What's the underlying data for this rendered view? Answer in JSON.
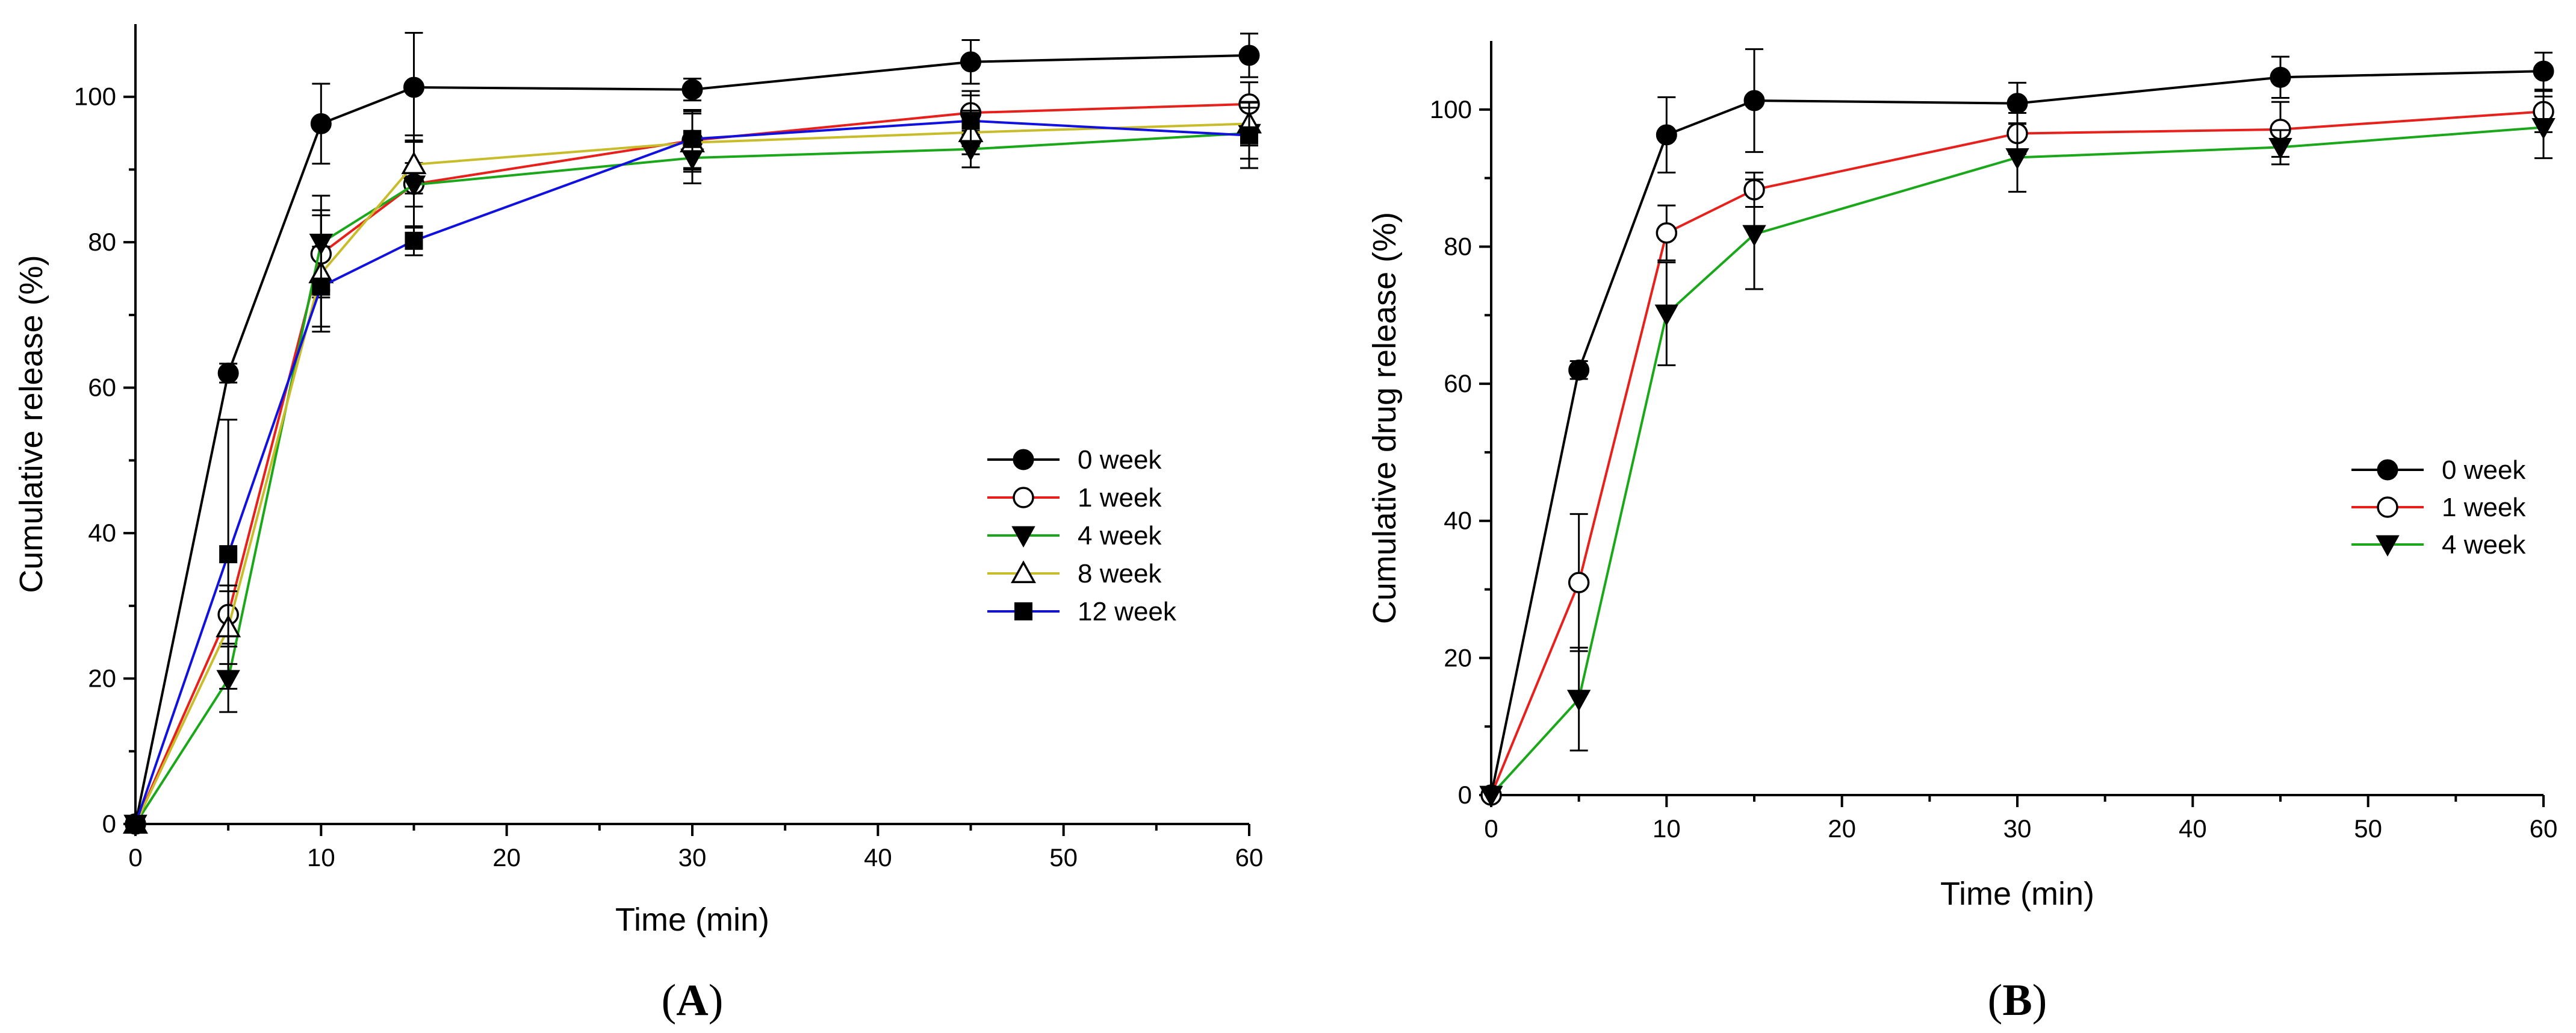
{
  "chart_data": [
    {
      "type": "line",
      "panel": "A",
      "panel_label": {
        "open": "(",
        "letter": "A",
        "close": ")"
      },
      "title": "",
      "xlabel": "Time (min)",
      "ylabel": "Cumulative release (%)",
      "xlim": [
        0,
        60
      ],
      "ylim": [
        0,
        110
      ],
      "xticks": [
        0,
        10,
        20,
        30,
        40,
        50,
        60
      ],
      "yticks": [
        0,
        20,
        40,
        60,
        80,
        100
      ],
      "x": [
        0,
        5,
        10,
        15,
        30,
        45,
        60
      ],
      "legend_position": "center-right",
      "series": [
        {
          "name": "0 week",
          "color": "#000000",
          "marker": "filled-circle",
          "values": [
            0,
            62,
            96.3,
            101.3,
            101,
            104.8,
            105.7
          ],
          "errors": [
            0,
            1.3,
            5.5,
            7.5,
            1.5,
            3,
            3
          ]
        },
        {
          "name": "1 week",
          "color": "#e8201c",
          "marker": "open-circle",
          "values": [
            0,
            28.8,
            78.4,
            88,
            94,
            97.8,
            99
          ],
          "errors": [
            0,
            4,
            6,
            6,
            4,
            3,
            3
          ]
        },
        {
          "name": "4 week",
          "color": "#1aa81a",
          "marker": "down-triangle",
          "values": [
            0,
            19.9,
            79.9,
            87.9,
            91.6,
            92.8,
            95
          ],
          "errors": [
            0,
            4.5,
            6.5,
            3,
            3.5,
            2.5,
            3.5
          ]
        },
        {
          "name": "8 week",
          "color": "#c9bc2b",
          "marker": "open-triangle",
          "values": [
            0,
            27,
            75.7,
            90.7,
            93.7,
            95.1,
            96.3
          ],
          "errors": [
            0,
            5,
            8,
            4,
            4,
            3,
            3
          ]
        },
        {
          "name": "12 week",
          "color": "#1010e0",
          "marker": "filled-square",
          "values": [
            0,
            37.1,
            73.9,
            80.2,
            94.2,
            96.7,
            94.7
          ],
          "errors": [
            0,
            18.5,
            5.5,
            2,
            4,
            3.5,
            4.5
          ]
        }
      ]
    },
    {
      "type": "line",
      "panel": "B",
      "panel_label": {
        "open": "(",
        "letter": "B",
        "close": ")"
      },
      "title": "",
      "xlabel": "Time (min)",
      "ylabel": "Cumulative drug release (%)",
      "xlim": [
        0,
        60
      ],
      "ylim": [
        0,
        110
      ],
      "xticks": [
        0,
        10,
        20,
        30,
        40,
        50,
        60
      ],
      "yticks": [
        0,
        20,
        40,
        60,
        80,
        100
      ],
      "x": [
        0,
        5,
        10,
        15,
        30,
        45,
        60
      ],
      "legend_position": "center-right",
      "series": [
        {
          "name": "0 week",
          "color": "#000000",
          "marker": "filled-circle",
          "values": [
            0,
            62,
            96.3,
            101.3,
            100.9,
            104.7,
            105.6
          ],
          "errors": [
            0,
            1.3,
            5.5,
            7.5,
            3,
            3,
            2.7
          ]
        },
        {
          "name": "1 week",
          "color": "#e8201c",
          "marker": "open-circle",
          "values": [
            0,
            31,
            82,
            88.3,
            96.5,
            97.1,
            99.7
          ],
          "errors": [
            0,
            10,
            4,
            2.5,
            3,
            4,
            3
          ]
        },
        {
          "name": "4 week",
          "color": "#1aa81a",
          "marker": "down-triangle",
          "values": [
            0,
            14,
            70.2,
            81.8,
            93,
            94.5,
            97.4
          ],
          "errors": [
            0,
            7.5,
            7.5,
            8,
            5,
            2.5,
            4.5
          ]
        }
      ]
    }
  ]
}
